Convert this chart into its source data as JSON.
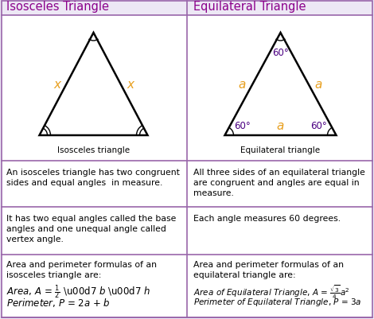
{
  "title_left": "Isosceles Triangle",
  "title_right": "Equilateral Triangle",
  "title_color": "#8B008B",
  "page_bg": "#ede8f5",
  "white": "#ffffff",
  "border_color": "#9966aa",
  "orange_color": "#E8A020",
  "black": "#000000",
  "fig_width": 4.7,
  "fig_height": 4.02,
  "row1_texts_left": [
    "An isosceles triangle has two congruent",
    "sides and equal angles  in measure."
  ],
  "row1_texts_right": [
    "All three sides of an equilateral triangle",
    "are congruent and angles are equal in",
    "measure."
  ],
  "row2_texts_left": [
    "It has two equal angles called the base",
    "angles and one unequal angle called",
    "vertex angle."
  ],
  "row2_texts_right": [
    "Each angle measures 60 degrees."
  ],
  "label_isosceles": "Isosceles triangle",
  "label_equilateral": "Equilateral triangle"
}
